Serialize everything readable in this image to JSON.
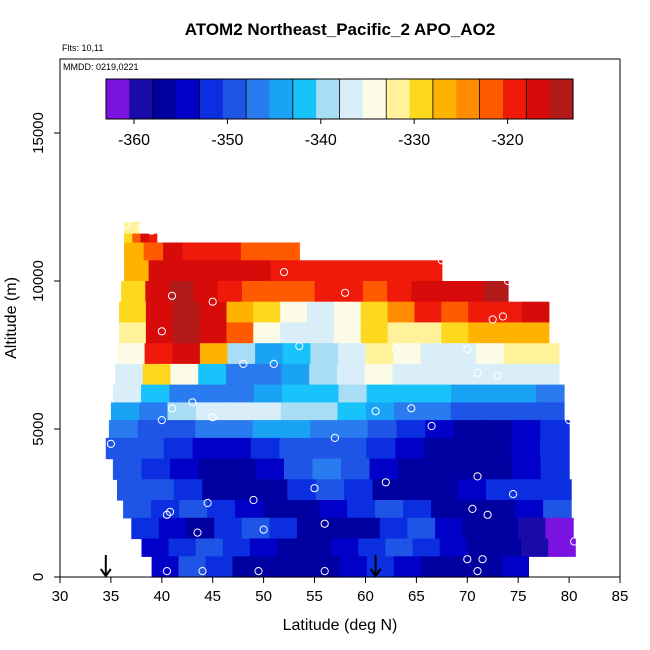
{
  "chart_data": {
    "type": "heatmap",
    "title": "ATOM2 Northeast_Pacific_2 APO_AO2",
    "subtitles": [
      "Flts: 10,11",
      "MMDD: 0219,0221"
    ],
    "xlabel": "Latitude (deg N)",
    "ylabel": "Altitude (m)",
    "xlim": [
      30,
      85
    ],
    "ylim": [
      0,
      17500
    ],
    "xticks": [
      30,
      35,
      40,
      45,
      50,
      55,
      60,
      65,
      70,
      75,
      80,
      85
    ],
    "yticks": [
      0,
      5000,
      10000,
      15000
    ],
    "colorbar": {
      "min": -363,
      "max": -313,
      "ticks": [
        -360,
        -350,
        -340,
        -330,
        -320
      ],
      "colors": [
        "#7a12e0",
        "#1a0aa8",
        "#0000a0",
        "#0000c8",
        "#0a2ee0",
        "#1f55e6",
        "#2a7bef",
        "#1aa3f5",
        "#18c3fb",
        "#a9dcf5",
        "#daeefa",
        "#fcfce6",
        "#fff29a",
        "#fdd81f",
        "#ffb300",
        "#ff8c00",
        "#ff5a00",
        "#f01a0a",
        "#d80b0b",
        "#b31a1a"
      ]
    },
    "rows": [
      {
        "lat0": 36.3,
        "lat1": 37.8,
        "alt0": 11600,
        "alt1": 12000,
        "values": [
          -332
        ]
      },
      {
        "lat0": 36.3,
        "lat1": 39.5,
        "alt0": 10700,
        "alt1": 11600,
        "values": [
          -330,
          -322,
          -318,
          -320
        ]
      },
      {
        "lat0": 36.3,
        "lat1": 53.5,
        "alt0": 10700,
        "alt1": 11300,
        "values": [
          -328,
          -322,
          -318,
          -320,
          -320,
          -320,
          -321,
          -322,
          -322
        ]
      },
      {
        "lat0": 36.3,
        "lat1": 67.5,
        "alt0": 10000,
        "alt1": 10700,
        "values": [
          -328,
          -318,
          -316,
          -316,
          -317,
          -318,
          -319,
          -320,
          -320,
          -320,
          -320,
          -320,
          -320
        ]
      },
      {
        "lat0": 36.0,
        "lat1": 74.0,
        "alt0": 9300,
        "alt1": 10000,
        "values": [
          -330,
          -316,
          -315,
          -318,
          -320,
          -322,
          -321,
          -322,
          -320,
          -320,
          -321,
          -320,
          -318,
          -318,
          -317,
          -315
        ]
      },
      {
        "lat0": 35.8,
        "lat1": 78.0,
        "alt0": 8600,
        "alt1": 9300,
        "values": [
          -330,
          -316,
          -314,
          -318,
          -326,
          -330,
          -334,
          -336,
          -334,
          -330,
          -324,
          -320,
          -322,
          -320,
          -319,
          -318
        ]
      },
      {
        "lat0": 35.8,
        "lat1": 78.0,
        "alt0": 7900,
        "alt1": 8600,
        "values": [
          -332,
          -318,
          -314,
          -316,
          -322,
          -334,
          -338,
          -338,
          -334,
          -330,
          -333,
          -332,
          -330,
          -328,
          -326,
          -326
        ]
      },
      {
        "lat0": 35.6,
        "lat1": 79.0,
        "alt0": 7200,
        "alt1": 7900,
        "values": [
          -334,
          -320,
          -318,
          -328,
          -340,
          -344,
          -343,
          -340,
          -336,
          -332,
          -334,
          -336,
          -336,
          -334,
          -332,
          -332
        ]
      },
      {
        "lat0": 35.4,
        "lat1": 79.0,
        "alt0": 6500,
        "alt1": 7200,
        "values": [
          -336,
          -330,
          -334,
          -342,
          -346,
          -346,
          -344,
          -340,
          -336,
          -334,
          -336,
          -338,
          -338,
          -338,
          -337,
          -336
        ]
      },
      {
        "lat0": 35.2,
        "lat1": 79.5,
        "alt0": 5900,
        "alt1": 6500,
        "values": [
          -338,
          -342,
          -346,
          -347,
          -346,
          -344,
          -342,
          -341,
          -340,
          -341,
          -342,
          -343,
          -344,
          -345,
          -345,
          -346
        ]
      },
      {
        "lat0": 35.0,
        "lat1": 79.5,
        "alt0": 5300,
        "alt1": 5900,
        "values": [
          -344,
          -348,
          -340,
          -338,
          -337,
          -338,
          -339,
          -340,
          -342,
          -344,
          -346,
          -348,
          -350,
          -350,
          -350,
          -350
        ]
      },
      {
        "lat0": 34.8,
        "lat1": 80.0,
        "alt0": 4700,
        "alt1": 5300,
        "values": [
          -348,
          -350,
          -350,
          -348,
          -346,
          -344,
          -344,
          -346,
          -348,
          -350,
          -352,
          -354,
          -356,
          -356,
          -354,
          -352
        ]
      },
      {
        "lat0": 34.5,
        "lat1": 80.0,
        "alt0": 4000,
        "alt1": 4700,
        "values": [
          -350,
          -350,
          -352,
          -354,
          -354,
          -352,
          -350,
          -349,
          -350,
          -352,
          -354,
          -356,
          -358,
          -357,
          -355,
          -352
        ]
      },
      {
        "lat0": 35.2,
        "lat1": 80.0,
        "alt0": 3300,
        "alt1": 4000,
        "values": [
          -350,
          -352,
          -354,
          -356,
          -356,
          -354,
          -350,
          -348,
          -350,
          -354,
          -356,
          -358,
          -358,
          -356,
          -354,
          -352
        ]
      },
      {
        "lat0": 35.6,
        "lat1": 80.2,
        "alt0": 2600,
        "alt1": 3300,
        "values": [
          -350,
          -350,
          -352,
          -356,
          -358,
          -356,
          -352,
          -350,
          -352,
          -356,
          -358,
          -356,
          -354,
          -352,
          -352,
          -352
        ]
      },
      {
        "lat0": 36.2,
        "lat1": 80.2,
        "alt0": 2000,
        "alt1": 2600,
        "values": [
          -350,
          -352,
          -350,
          -352,
          -354,
          -356,
          -356,
          -354,
          -352,
          -350,
          -352,
          -356,
          -358,
          -356,
          -354,
          -350
        ]
      },
      {
        "lat0": 37.0,
        "lat1": 80.4,
        "alt0": 1300,
        "alt1": 2000,
        "values": [
          -352,
          -354,
          -356,
          -352,
          -350,
          -352,
          -356,
          -358,
          -356,
          -352,
          -350,
          -354,
          -358,
          -356,
          -360,
          -362
        ]
      },
      {
        "lat0": 38.0,
        "lat1": 80.6,
        "alt0": 700,
        "alt1": 1300,
        "values": [
          -354,
          -352,
          -350,
          -352,
          -354,
          -356,
          -356,
          -354,
          -352,
          -350,
          -352,
          -354,
          -356,
          -358,
          -360,
          -362
        ]
      },
      {
        "lat0": 39.0,
        "lat1": 76.0,
        "alt0": 0,
        "alt1": 700,
        "values": [
          -354,
          -350,
          -352,
          -356,
          -358,
          -358,
          -356,
          -354,
          -352,
          -354,
          -356,
          -358,
          -356,
          -354
        ]
      }
    ],
    "samples": [
      [
        36.5,
        11900
      ],
      [
        38.0,
        11800
      ],
      [
        39.0,
        11700
      ],
      [
        52.0,
        10300
      ],
      [
        67.5,
        10700
      ],
      [
        74.0,
        10000
      ],
      [
        78.0,
        9600
      ],
      [
        58.0,
        9600
      ],
      [
        41.0,
        9500
      ],
      [
        45.0,
        9300
      ],
      [
        72.5,
        8700
      ],
      [
        73.5,
        8800
      ],
      [
        40.0,
        8300
      ],
      [
        53.5,
        7800
      ],
      [
        63.0,
        7700
      ],
      [
        70.0,
        7700
      ],
      [
        48.0,
        7200
      ],
      [
        51.0,
        7200
      ],
      [
        71.0,
        6900
      ],
      [
        73.0,
        6800
      ],
      [
        43.0,
        5900
      ],
      [
        41.0,
        5700
      ],
      [
        45.0,
        5400
      ],
      [
        40.0,
        5300
      ],
      [
        57.0,
        4700
      ],
      [
        61.0,
        5600
      ],
      [
        64.5,
        5700
      ],
      [
        66.5,
        5100
      ],
      [
        80.0,
        5300
      ],
      [
        35.0,
        4500
      ],
      [
        71.0,
        3400
      ],
      [
        55.0,
        3000
      ],
      [
        62.0,
        3200
      ],
      [
        74.5,
        2800
      ],
      [
        49.0,
        2600
      ],
      [
        44.5,
        2500
      ],
      [
        70.5,
        2300
      ],
      [
        40.5,
        2100
      ],
      [
        40.8,
        2200
      ],
      [
        72.0,
        2100
      ],
      [
        56.0,
        1800
      ],
      [
        50.0,
        1600
      ],
      [
        43.5,
        1500
      ],
      [
        80.5,
        1200
      ],
      [
        70.0,
        600
      ],
      [
        71.5,
        600
      ],
      [
        40.5,
        200
      ],
      [
        44.0,
        200
      ],
      [
        49.5,
        200
      ],
      [
        56.0,
        200
      ],
      [
        71.0,
        200
      ]
    ],
    "arrows": [
      34.5,
      61.0
    ]
  }
}
